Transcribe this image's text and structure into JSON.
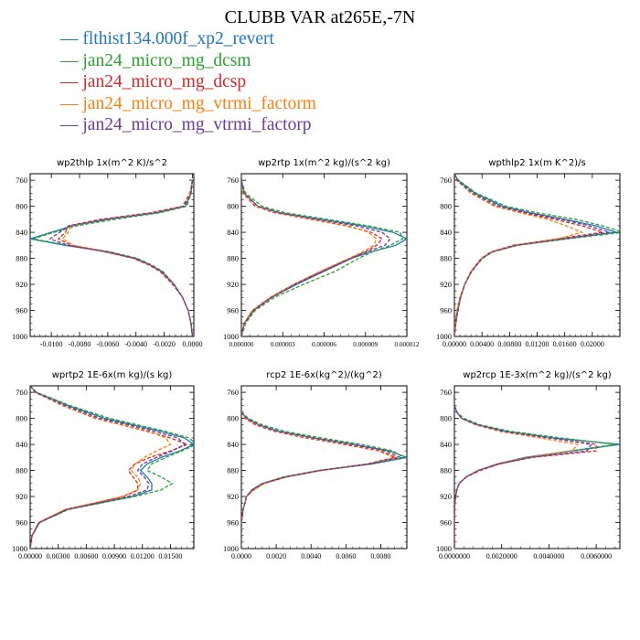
{
  "title": "CLUBB VAR at265E,-7N",
  "legend": [
    {
      "label": "flthist134.000f_xp2_revert",
      "color": "#1f77b4",
      "dash": "solid"
    },
    {
      "label": "jan24_micro_mg_dcsm",
      "color": "#2ca02c",
      "dash": "dashed"
    },
    {
      "label": "jan24_micro_mg_dcsp",
      "color": "#d62728",
      "dash": "dashed"
    },
    {
      "label": "jan24_micro_mg_vtrmi_factorm",
      "color": "#ff7f0e",
      "dash": "dashed"
    },
    {
      "label": "jan24_micro_mg_vtrmi_factorp",
      "color": "#6a3d9a",
      "dash": "dashed"
    }
  ],
  "chart_data": [
    {
      "type": "line",
      "title": "wp2thlp  1x(m^2 K)/s^2",
      "ylim": [
        1000,
        750
      ],
      "xlim": [
        -0.0115,
        0.0001
      ],
      "yticks": [
        760,
        800,
        840,
        880,
        920,
        960,
        1000
      ],
      "xticks": [
        -0.01,
        -0.008,
        -0.006,
        -0.004,
        -0.002,
        0.0
      ],
      "xticklabels": [
        "-0.0100",
        "-0.0080",
        "-0.0060",
        "-0.0040",
        "-0.0020",
        "0.0000"
      ],
      "y": [
        760,
        780,
        800,
        810,
        820,
        830,
        840,
        850,
        860,
        870,
        880,
        890,
        900,
        920,
        940,
        960,
        980,
        1000
      ],
      "series": [
        {
          "name": "flthist134.000f_xp2_revert",
          "values": [
            0.0,
            -0.0001,
            -0.0005,
            -0.0025,
            -0.006,
            -0.0085,
            -0.01,
            -0.0115,
            -0.009,
            -0.006,
            -0.004,
            -0.003,
            -0.0022,
            -0.0013,
            -0.0007,
            -0.0003,
            -0.0001,
            0.0
          ]
        },
        {
          "name": "jan24_micro_mg_dcsm",
          "values": [
            0.0,
            -0.0001,
            -0.0004,
            -0.0023,
            -0.0055,
            -0.0082,
            -0.0098,
            -0.0113,
            -0.0088,
            -0.0058,
            -0.0039,
            -0.0029,
            -0.0021,
            -0.0013,
            -0.0007,
            -0.0003,
            -0.0001,
            0.0
          ]
        },
        {
          "name": "jan24_micro_mg_dcsp",
          "values": [
            0.0,
            -0.0002,
            -0.0007,
            -0.003,
            -0.0065,
            -0.0088,
            -0.009,
            -0.0095,
            -0.0086,
            -0.0062,
            -0.0042,
            -0.0031,
            -0.0023,
            -0.0014,
            -0.0007,
            -0.0003,
            -0.0001,
            0.0
          ]
        },
        {
          "name": "jan24_micro_mg_vtrmi_factorm",
          "values": [
            0.0,
            -0.0002,
            -0.0006,
            -0.0028,
            -0.0062,
            -0.0086,
            -0.0088,
            -0.0092,
            -0.0084,
            -0.006,
            -0.0041,
            -0.003,
            -0.0022,
            -0.0013,
            -0.0007,
            -0.0003,
            -0.0001,
            0.0
          ]
        },
        {
          "name": "jan24_micro_mg_vtrmi_factorp",
          "values": [
            0.0,
            -0.0001,
            -0.0006,
            -0.0027,
            -0.0062,
            -0.0087,
            -0.0094,
            -0.0101,
            -0.0088,
            -0.0061,
            -0.0041,
            -0.003,
            -0.0022,
            -0.0013,
            -0.0007,
            -0.0003,
            -0.0001,
            0.0
          ]
        }
      ]
    },
    {
      "type": "line",
      "title": "wp2rtp  1x(m^2 kg)/(s^2 kg)",
      "ylim": [
        1000,
        750
      ],
      "xlim": [
        0,
        1.2e-05
      ],
      "yticks": [
        760,
        800,
        840,
        880,
        920,
        960,
        1000
      ],
      "xticks": [
        0,
        3e-06,
        6e-06,
        9e-06,
        1.2e-05
      ],
      "xticklabels": [
        "0.000000",
        "0.000003",
        "0.000006",
        "0.000009",
        "0.000012"
      ],
      "xtick_shorten": true,
      "y": [
        760,
        780,
        800,
        810,
        820,
        830,
        840,
        850,
        860,
        870,
        880,
        900,
        920,
        940,
        960,
        980,
        1000
      ],
      "series": [
        {
          "name": "flthist134.000f_xp2_revert",
          "values": [
            0.0,
            2e-07,
            1.2e-06,
            2.8e-06,
            5.8e-06,
            8.8e-06,
            1.1e-05,
            1.2e-05,
            1.12e-05,
            9.4e-06,
            8e-06,
            6e-06,
            4e-06,
            2.2e-06,
            9e-07,
            2e-07,
            0.0
          ]
        },
        {
          "name": "jan24_micro_mg_dcsm",
          "values": [
            0.0,
            3e-07,
            1.5e-06,
            3.2e-06,
            6.2e-06,
            9.2e-06,
            1.15e-05,
            1.17e-05,
            1.08e-05,
            9.5e-06,
            8.5e-06,
            6.8e-06,
            4.5e-06,
            2.4e-06,
            1e-06,
            3e-07,
            0.0
          ]
        },
        {
          "name": "jan24_micro_mg_dcsp",
          "values": [
            0.0,
            1e-07,
            1e-06,
            2.4e-06,
            5e-06,
            7.6e-06,
            9.4e-06,
            1.02e-05,
            9.8e-06,
            9e-06,
            7.9e-06,
            5.8e-06,
            3.8e-06,
            2.1e-06,
            8e-07,
            2e-07,
            0.0
          ]
        },
        {
          "name": "jan24_micro_mg_vtrmi_factorm",
          "values": [
            0.0,
            1e-07,
            1.1e-06,
            2.5e-06,
            5.2e-06,
            7.8e-06,
            9.2e-06,
            9.8e-06,
            9.6e-06,
            8.8e-06,
            7.8e-06,
            5.7e-06,
            3.8e-06,
            2.1e-06,
            8e-07,
            2e-07,
            0.0
          ]
        },
        {
          "name": "jan24_micro_mg_vtrmi_factorp",
          "values": [
            0.0,
            2e-07,
            1.2e-06,
            2.7e-06,
            5.5e-06,
            8.3e-06,
            1.02e-05,
            1.08e-05,
            1.04e-05,
            9.1e-06,
            7.9e-06,
            5.9e-06,
            3.9e-06,
            2.2e-06,
            9e-07,
            2e-07,
            0.0
          ]
        }
      ]
    },
    {
      "type": "line",
      "title": "wpthlp2  1x(m K^2)/s",
      "ylim": [
        1000,
        750
      ],
      "xlim": [
        0,
        0.024
      ],
      "yticks": [
        760,
        800,
        840,
        880,
        920,
        960,
        1000
      ],
      "xticks": [
        0,
        0.004,
        0.008,
        0.012,
        0.016,
        0.02
      ],
      "xticklabels": [
        "0.00000",
        "0.00400",
        "0.00800",
        "0.01200",
        "0.01600",
        "0.02000"
      ],
      "y": [
        750,
        760,
        780,
        800,
        810,
        820,
        830,
        840,
        850,
        860,
        870,
        880,
        900,
        920,
        940,
        960,
        980,
        1000
      ],
      "series": [
        {
          "name": "flthist134.000f_xp2_revert",
          "values": [
            0.0,
            0.0005,
            0.003,
            0.007,
            0.011,
            0.016,
            0.0205,
            0.0235,
            0.016,
            0.009,
            0.0055,
            0.004,
            0.0025,
            0.0015,
            0.0009,
            0.0005,
            0.0002,
            0.0
          ]
        },
        {
          "name": "jan24_micro_mg_dcsm",
          "values": [
            0.0,
            0.0006,
            0.0032,
            0.0075,
            0.012,
            0.0175,
            0.0215,
            0.0245,
            0.0165,
            0.0092,
            0.0056,
            0.0041,
            0.0025,
            0.0015,
            0.0009,
            0.0005,
            0.0002,
            0.0
          ]
        },
        {
          "name": "jan24_micro_mg_dcsp",
          "values": [
            0.0,
            0.0003,
            0.0025,
            0.006,
            0.01,
            0.0145,
            0.0185,
            0.0215,
            0.015,
            0.0085,
            0.0053,
            0.0039,
            0.0024,
            0.0015,
            0.0008,
            0.0004,
            0.0001,
            0.0
          ]
        },
        {
          "name": "jan24_micro_mg_vtrmi_factorm",
          "values": [
            0.0,
            0.0003,
            0.0024,
            0.0058,
            0.0095,
            0.0135,
            0.0162,
            0.0185,
            0.015,
            0.0088,
            0.0054,
            0.004,
            0.0024,
            0.0015,
            0.0008,
            0.0004,
            0.0001,
            0.0
          ]
        },
        {
          "name": "jan24_micro_mg_vtrmi_factorp",
          "values": [
            0.0,
            0.0004,
            0.0027,
            0.0065,
            0.0105,
            0.0155,
            0.0195,
            0.0225,
            0.0158,
            0.0089,
            0.0055,
            0.004,
            0.0025,
            0.0015,
            0.0009,
            0.0005,
            0.0002,
            0.0
          ]
        }
      ]
    },
    {
      "type": "line",
      "title": "wprtp2  1E-6x(m kg)/(s kg)",
      "ylim": [
        1000,
        750
      ],
      "xlim": [
        0,
        0.0175
      ],
      "yticks": [
        760,
        800,
        840,
        880,
        920,
        960,
        1000
      ],
      "xticks": [
        0,
        0.003,
        0.006,
        0.009,
        0.012,
        0.015
      ],
      "xticklabels": [
        "0.00000",
        "0.00300",
        "0.00600",
        "0.00900",
        "0.01200",
        "0.01500"
      ],
      "y": [
        750,
        760,
        780,
        800,
        810,
        820,
        830,
        840,
        850,
        860,
        870,
        880,
        890,
        900,
        910,
        920,
        930,
        940,
        960,
        980,
        1000
      ],
      "series": [
        {
          "name": "flthist134.000f_xp2_revert",
          "values": [
            0.0,
            0.0006,
            0.004,
            0.008,
            0.011,
            0.014,
            0.0165,
            0.0175,
            0.016,
            0.014,
            0.0125,
            0.0118,
            0.0125,
            0.013,
            0.013,
            0.011,
            0.0075,
            0.004,
            0.001,
            0.0002,
            0.0
          ]
        },
        {
          "name": "jan24_micro_mg_dcsm",
          "values": [
            0.0,
            0.0007,
            0.0042,
            0.0085,
            0.0115,
            0.0145,
            0.017,
            0.0178,
            0.0162,
            0.0145,
            0.013,
            0.0125,
            0.014,
            0.0152,
            0.014,
            0.0112,
            0.0076,
            0.0041,
            0.001,
            0.0002,
            0.0
          ]
        },
        {
          "name": "jan24_micro_mg_dcsp",
          "values": [
            0.0,
            0.0005,
            0.0034,
            0.007,
            0.0098,
            0.0125,
            0.015,
            0.0168,
            0.015,
            0.0128,
            0.0112,
            0.0105,
            0.011,
            0.0115,
            0.0115,
            0.01,
            0.007,
            0.0038,
            0.0009,
            0.0002,
            0.0
          ]
        },
        {
          "name": "jan24_micro_mg_vtrmi_factorm",
          "values": [
            0.0,
            0.0005,
            0.0035,
            0.0072,
            0.01,
            0.0128,
            0.0145,
            0.015,
            0.0135,
            0.0122,
            0.0112,
            0.0108,
            0.0115,
            0.0118,
            0.0115,
            0.0098,
            0.0068,
            0.0037,
            0.0009,
            0.0002,
            0.0
          ]
        },
        {
          "name": "jan24_micro_mg_vtrmi_factorp",
          "values": [
            0.0,
            0.0006,
            0.0037,
            0.0075,
            0.0105,
            0.0133,
            0.0158,
            0.0165,
            0.0152,
            0.0135,
            0.012,
            0.0115,
            0.0122,
            0.0127,
            0.0125,
            0.0105,
            0.0072,
            0.0039,
            0.001,
            0.0002,
            0.0
          ]
        }
      ]
    },
    {
      "type": "line",
      "title": "rcp2  1E-6x(kg^2)/(kg^2)",
      "ylim": [
        1000,
        750
      ],
      "xlim": [
        0,
        0.0095
      ],
      "yticks": [
        760,
        800,
        840,
        880,
        920,
        960,
        1000
      ],
      "xticks": [
        0,
        0.002,
        0.004,
        0.006,
        0.008
      ],
      "xticklabels": [
        "0.0000",
        "0.0020",
        "0.0040",
        "0.0060",
        "0.0080"
      ],
      "y": [
        790,
        800,
        810,
        820,
        830,
        840,
        850,
        860,
        870,
        880,
        890,
        900,
        910,
        920,
        940,
        960,
        980,
        1000
      ],
      "series": [
        {
          "name": "flthist134.000f_xp2_revert",
          "values": [
            0.0,
            0.0003,
            0.001,
            0.0022,
            0.0042,
            0.0065,
            0.0085,
            0.0095,
            0.0075,
            0.0045,
            0.0025,
            0.0012,
            0.0006,
            0.0003,
            0.0001,
            0.0,
            0.0,
            0.0
          ]
        },
        {
          "name": "jan24_micro_mg_dcsm",
          "values": [
            0.0,
            0.0004,
            0.0012,
            0.0025,
            0.0046,
            0.0069,
            0.0087,
            0.0093,
            0.0073,
            0.0044,
            0.0024,
            0.0012,
            0.0006,
            0.0003,
            0.0001,
            0.0,
            0.0,
            0.0
          ]
        },
        {
          "name": "jan24_micro_mg_dcsp",
          "values": [
            0.0,
            0.0002,
            0.0008,
            0.0019,
            0.0037,
            0.0059,
            0.0079,
            0.0088,
            0.0072,
            0.0046,
            0.0026,
            0.0013,
            0.0007,
            0.0003,
            0.0001,
            0.0,
            0.0,
            0.0
          ]
        },
        {
          "name": "jan24_micro_mg_vtrmi_factorm",
          "values": [
            0.0,
            0.0002,
            0.0009,
            0.002,
            0.0039,
            0.0061,
            0.0081,
            0.0089,
            0.0073,
            0.0046,
            0.0026,
            0.0013,
            0.0007,
            0.0003,
            0.0001,
            0.0,
            0.0,
            0.0
          ]
        },
        {
          "name": "jan24_micro_mg_vtrmi_factorp",
          "values": [
            0.0,
            0.0003,
            0.001,
            0.0021,
            0.0041,
            0.0063,
            0.0083,
            0.0091,
            0.0074,
            0.0045,
            0.0025,
            0.0012,
            0.0006,
            0.0003,
            0.0001,
            0.0,
            0.0,
            0.0
          ]
        }
      ]
    },
    {
      "type": "line",
      "title": "wp2rcp  1E-3x(m^2 kg)/(s^2 kg)",
      "ylim": [
        1000,
        750
      ],
      "xlim": [
        0,
        0.007
      ],
      "yticks": [
        760,
        800,
        840,
        880,
        920,
        960,
        1000
      ],
      "xticks": [
        0,
        0.002,
        0.004,
        0.006
      ],
      "xticklabels": [
        "0.0000000",
        "0.0020000",
        "0.0040000",
        "0.0060000"
      ],
      "y": [
        780,
        790,
        800,
        810,
        820,
        830,
        840,
        850,
        860,
        870,
        880,
        890,
        900,
        910,
        920,
        940,
        960,
        980,
        1000
      ],
      "series": [
        {
          "name": "flthist134.000f_xp2_revert",
          "values": [
            0.0,
            0.0001,
            0.0003,
            0.001,
            0.0022,
            0.0042,
            0.007,
            0.005,
            0.003,
            0.0018,
            0.001,
            0.0005,
            0.0002,
            0.0001,
            5e-05,
            0.0,
            0.0,
            0.0,
            0.0
          ]
        },
        {
          "name": "jan24_micro_mg_dcsm",
          "values": [
            0.0,
            0.0001,
            0.0004,
            0.0011,
            0.0024,
            0.0045,
            0.0068,
            0.0049,
            0.003,
            0.0018,
            0.001,
            0.0005,
            0.0002,
            0.0001,
            5e-05,
            0.0,
            0.0,
            0.0,
            0.0
          ]
        },
        {
          "name": "jan24_micro_mg_dcsp",
          "values": [
            0.0,
            0.0001,
            0.0003,
            0.0009,
            0.002,
            0.004,
            0.006,
            0.006,
            0.0033,
            0.0019,
            0.0011,
            0.0005,
            0.0002,
            0.0001,
            5e-05,
            0.0,
            0.0,
            0.0,
            0.0
          ]
        },
        {
          "name": "jan24_micro_mg_vtrmi_factorm",
          "values": [
            0.0,
            0.0001,
            0.0003,
            0.0009,
            0.0019,
            0.0036,
            0.0052,
            0.005,
            0.0031,
            0.0018,
            0.001,
            0.0005,
            0.0002,
            0.0001,
            5e-05,
            0.0,
            0.0,
            0.0,
            0.0
          ]
        },
        {
          "name": "jan24_micro_mg_vtrmi_factorp",
          "values": [
            0.0,
            0.0001,
            0.0003,
            0.001,
            0.0021,
            0.004,
            0.0058,
            0.0056,
            0.0032,
            0.0019,
            0.001,
            0.0005,
            0.0002,
            0.0001,
            5e-05,
            0.0,
            0.0,
            0.0,
            0.0
          ]
        }
      ]
    }
  ]
}
